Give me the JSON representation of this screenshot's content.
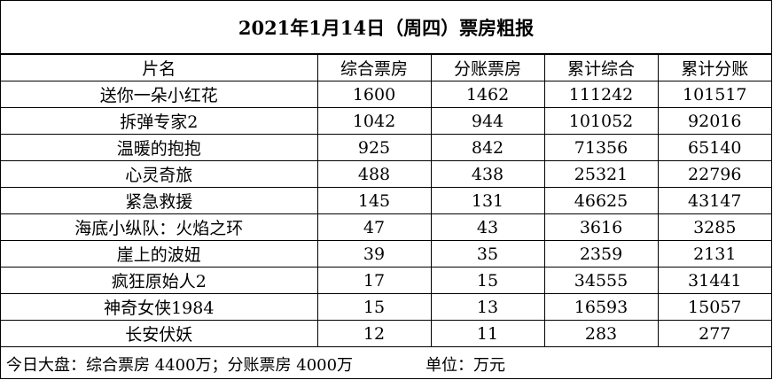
{
  "title": "2021年1月14日（周四）票房粗报",
  "headers": [
    "片名",
    "综合票房",
    "分账票房",
    "累计综合",
    "累计分账"
  ],
  "rows": [
    [
      "送你一朵小红花",
      "1600",
      "1462",
      "111242",
      "101517"
    ],
    [
      "拆弹专家2",
      "1042",
      "944",
      "101052",
      "92016"
    ],
    [
      "温暖的抱抱",
      "925",
      "842",
      "71356",
      "65140"
    ],
    [
      "心灵奇旅",
      "488",
      "438",
      "25321",
      "22796"
    ],
    [
      "紧急救援",
      "145",
      "131",
      "46625",
      "43147"
    ],
    [
      "海底小纵队：火焰之环",
      "47",
      "43",
      "3616",
      "3285"
    ],
    [
      "崖上的波妞",
      "39",
      "35",
      "2359",
      "2131"
    ],
    [
      "疯狂原始人2",
      "17",
      "15",
      "34555",
      "31441"
    ],
    [
      "神奇女侠1984",
      "15",
      "13",
      "16593",
      "15057"
    ],
    [
      "长安伏妖",
      "12",
      "11",
      "283",
      "277"
    ]
  ],
  "footer": {
    "summary": "今日大盘：综合票房 4400万；分账票房 4000万",
    "unit": "单位：万元"
  }
}
